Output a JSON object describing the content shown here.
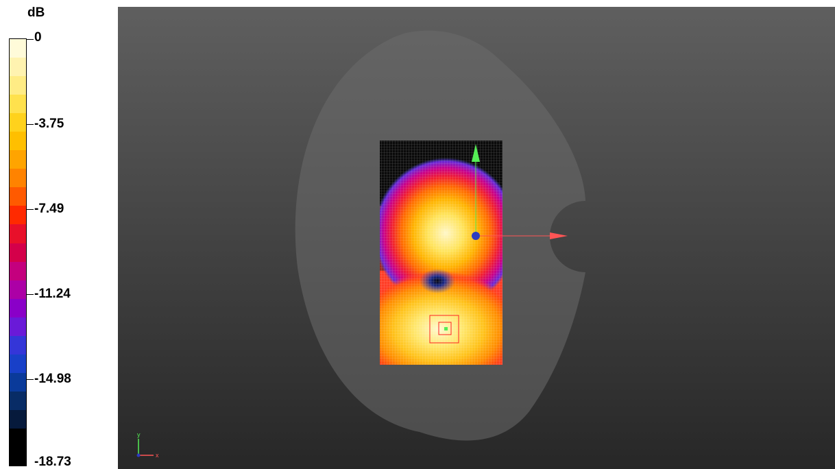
{
  "legend": {
    "unit": "dB",
    "ticks": [
      "0",
      "-3.75",
      "-7.49",
      "-11.24",
      "-14.98",
      "-18.73"
    ],
    "bands": [
      "#fffbd9",
      "#fff3b0",
      "#ffec85",
      "#ffe14d",
      "#ffd21c",
      "#ffbf00",
      "#ffa400",
      "#ff8300",
      "#ff5a00",
      "#ff2a00",
      "#e8102a",
      "#d4004a",
      "#c4007e",
      "#ac00a6",
      "#8a00c8",
      "#6a1ad8",
      "#3436d8",
      "#1840c8",
      "#0a3a9a",
      "#082c66",
      "#061a3c",
      "#000000",
      "#000000"
    ]
  },
  "axes_triad": {
    "y": "y",
    "x": "x"
  },
  "colors": {
    "phantom": "#6b6b6b",
    "x_arrow": "#ff5555",
    "y_arrow": "#55ee55",
    "origin": "#2d3bbf",
    "peak_marker": "#ff2222"
  }
}
